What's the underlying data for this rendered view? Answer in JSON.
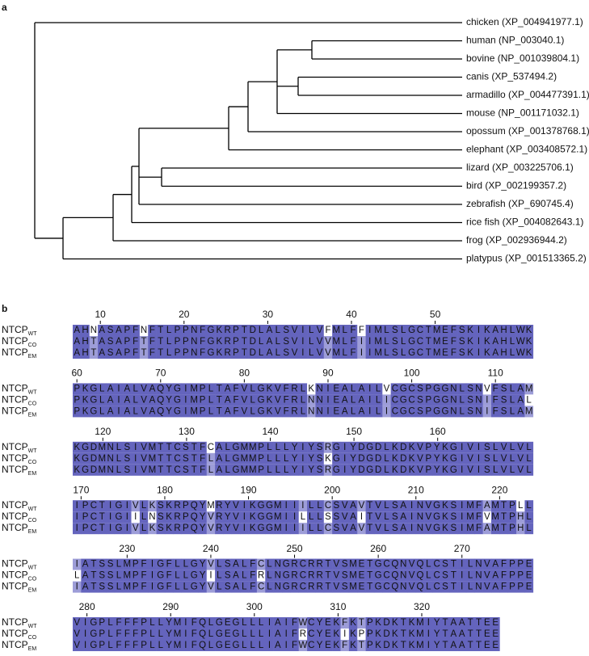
{
  "panel_a": {
    "label": "a",
    "leaves": [
      "chicken (XP_004941977.1)",
      "human (NP_003040.1)",
      "bovine (NP_001039804.1)",
      "canis (XP_537494.2)",
      "armadillo (XP_004477391.1)",
      "mouse (NP_001171032.1)",
      "opossum (XP_001378768.1)",
      "elephant (XP_003408572.1)",
      "lizard (XP_003225706.1)",
      "bird (XP_002199357.2)",
      "zebrafish (XP_690745.4)",
      "rice fish (XP_004082643.1)",
      "frog (XP_002936944.2)",
      "platypus (XP_001513365.2)"
    ]
  },
  "panel_b": {
    "label": "b",
    "row_labels": [
      {
        "name": "NTCP",
        "sub": "WT"
      },
      {
        "name": "NTCP",
        "sub": "CO"
      },
      {
        "name": "NTCP",
        "sub": "EM"
      }
    ],
    "blocks": [
      {
        "ticks": [
          10,
          20,
          30,
          40,
          50
        ],
        "sequences": [
          "AHNASAPFNFTLPPNFGKRPTDLALSVILVFMLFFIMLSLGCTMEFSKIKAHLWK",
          "AHTASAPFTFTLPPNFGKRPTDLALSVILVVMLFIIMLSLGCTMEFSKIKAHLWK",
          "AHTASAPFTFTLPPNFGKRPTDLALSVILVVMLFIIMLSLGCTMEFSKIKAHLWK"
        ]
      },
      {
        "ticks": [
          60,
          70,
          80,
          90,
          100,
          110
        ],
        "sequences": [
          "PKGLAIALVAQYGIMPLTAFVLGKVFRLKNIEALAILVCGCSPGGNLSNVFSLAM",
          "PKGLAIALVAQYGIMPLTAFVLGKVFRLNNIEALAILICGCSPGGNLSNIFSLAL",
          "PKGLAIALVAQYGIMPLTAFVLGKVFRLNNIEALAILICGCSPGGNLSNIFSLAM"
        ]
      },
      {
        "ticks": [
          120,
          130,
          140,
          150,
          160
        ],
        "sequences": [
          "KGDMNLSIVMTTCSTFCALGMMPLLLYIYSRGIYDGDLKDKVPYKGIVISLVLVL",
          "KGDMNLSIVMTTCSTFLALGMMPLLLYIYSKGIYDGDLKDKVPYKGIVISLVLVL",
          "KGDMNLSIVMTTCSTFLALGMMPLLLYIYSRGIYDGDLKDKVPYKGIVISLVLVL"
        ]
      },
      {
        "ticks": [
          170,
          180,
          190,
          200,
          210,
          220
        ],
        "sequences": [
          "IPCTIGIVLKSKRPQYMRYVIKGGMIIILLCSVAVTVLSAINVGKSIMFAMTPLL",
          "IPCTIGIILNSKRPQYVRYVIKGGMIILLLSSVAITVLSAINVGKSIMFVMTPHL",
          "IPCTIGIVLKSKRPQYVRYVIKGGMIIILLCSVAVTVLSAINVGKSIMFAMTPHL"
        ]
      },
      {
        "ticks": [
          230,
          240,
          250,
          260,
          270
        ],
        "sequences": [
          "IATSSLMPFIGFLLGYVLSALFCLNGRCRRTVSMETGCQNVQLCSTILNVAFPPE",
          "LATSSLMPFIGFLLGYILSALFRLNGRCRRTVSMETGCQNVQLCSTILNVAFPPE",
          "IATSSLMPFIGFLLGYVLSALFCLNGRCRRTVSMETGCQNVQLCSTILNVAFPPE"
        ]
      },
      {
        "ticks": [
          280,
          290,
          300,
          310,
          320
        ],
        "sequences": [
          "VIGPLFFFPLLYMIFQLGEGLLLIAIFWCYEKFKTPKDKTKMIYTAATTEE",
          "VIGPLFFFPLLYMIFQLGEGLLLIAIFRCYEKIKPPKDKTKMIYTAATTEE",
          "VIGPLFFFPLLYMIFQLGEGLLLIAIFWCYEKFKTPKDKTKMIYTAATTEE"
        ]
      }
    ]
  }
}
